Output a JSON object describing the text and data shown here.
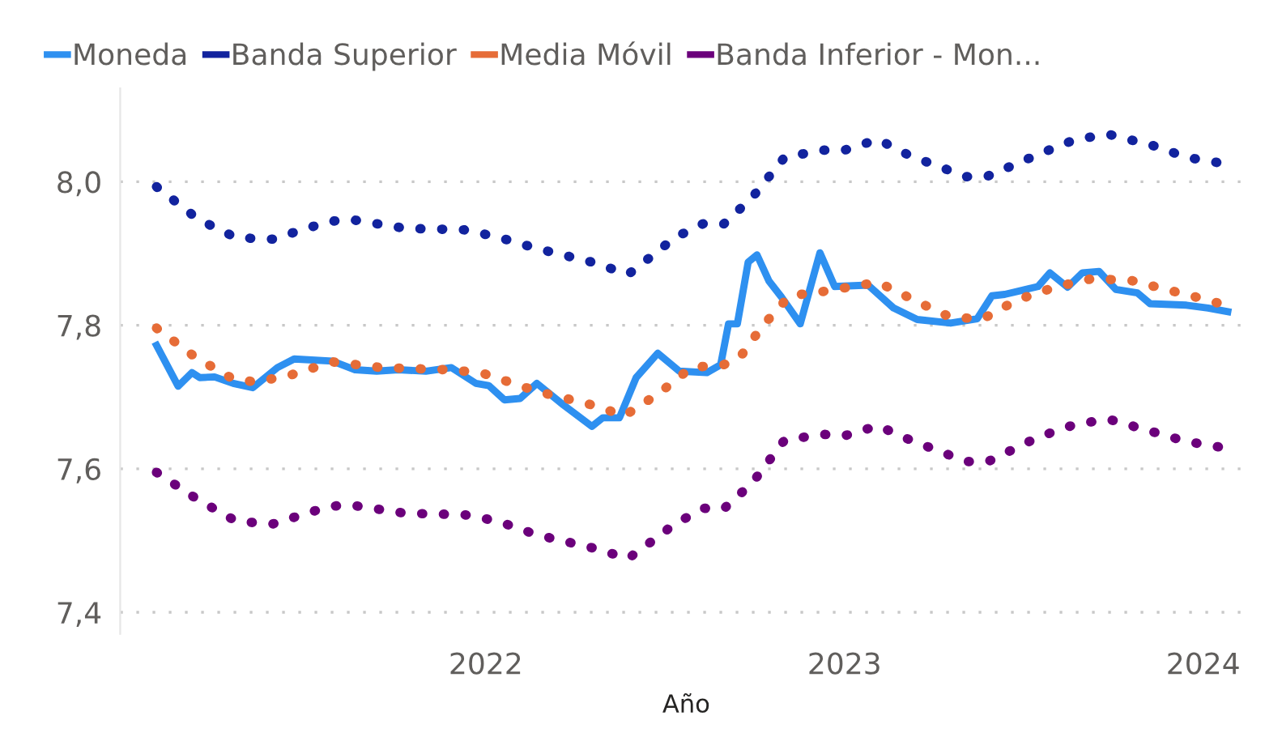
{
  "chart_data": {
    "type": "line",
    "xlabel": "Año",
    "legend": "top left",
    "grid": "y",
    "xlim": [
      "2020-12-25",
      "2024-02-20"
    ],
    "xticks": [
      {
        "value": "2022-01-01",
        "label": "2022"
      },
      {
        "value": "2023-01-01",
        "label": "2023"
      },
      {
        "value": "2024-01-01",
        "label": "2024"
      }
    ],
    "ylim": [
      7.37,
      8.13
    ],
    "yticks": [
      {
        "value": 7.4,
        "label": "7,4"
      },
      {
        "value": 7.6,
        "label": "7,6"
      },
      {
        "value": 7.8,
        "label": "7,8"
      },
      {
        "value": 8.0,
        "label": "8,0"
      }
    ],
    "series": [
      {
        "name": "Moneda",
        "color": "#2e90f0",
        "line_style": "solid",
        "x": [
          "2021-01-31",
          "2021-02-22",
          "2021-03-08",
          "2021-03-16",
          "2021-03-31",
          "2021-04-19",
          "2021-05-09",
          "2021-06-03",
          "2021-06-20",
          "2021-07-29",
          "2021-08-21",
          "2021-09-12",
          "2021-10-04",
          "2021-11-01",
          "2021-11-27",
          "2021-12-22",
          "2022-01-04",
          "2022-01-20",
          "2022-02-05",
          "2022-02-22",
          "2022-03-21",
          "2022-04-19",
          "2022-04-30",
          "2022-05-17",
          "2022-06-03",
          "2022-06-25",
          "2022-07-17",
          "2022-08-14",
          "2022-08-28",
          "2022-09-05",
          "2022-09-14",
          "2022-09-25",
          "2022-10-04",
          "2022-10-16",
          "2022-10-29",
          "2022-11-17",
          "2022-12-07",
          "2022-12-22",
          "2023-01-25",
          "2023-02-20",
          "2023-03-16",
          "2023-04-19",
          "2023-05-16",
          "2023-05-31",
          "2023-06-13",
          "2023-07-17",
          "2023-07-29",
          "2023-08-16",
          "2023-08-31",
          "2023-09-17",
          "2023-10-04",
          "2023-10-26",
          "2023-11-08",
          "2023-12-15",
          "2024-01-06",
          "2024-01-26"
        ],
        "values": [
          7.772,
          7.715,
          7.734,
          7.727,
          7.728,
          7.719,
          7.713,
          7.741,
          7.753,
          7.75,
          7.738,
          7.736,
          7.738,
          7.736,
          7.741,
          7.719,
          7.716,
          7.696,
          7.698,
          7.719,
          7.689,
          7.659,
          7.671,
          7.671,
          7.727,
          7.761,
          7.736,
          7.734,
          7.745,
          7.802,
          7.802,
          7.888,
          7.898,
          7.862,
          7.839,
          7.802,
          7.901,
          7.854,
          7.856,
          7.824,
          7.808,
          7.803,
          7.809,
          7.841,
          7.843,
          7.854,
          7.873,
          7.853,
          7.873,
          7.875,
          7.85,
          7.845,
          7.83,
          7.828,
          7.824,
          7.819
        ]
      },
      {
        "name": "Banda Superior",
        "color": "#12239e",
        "line_style": "dotted",
        "x": [
          "2021-01-31",
          "2021-03-14",
          "2021-04-22",
          "2021-05-29",
          "2021-07-24",
          "2021-08-14",
          "2021-10-11",
          "2021-12-10",
          "2022-01-13",
          "2022-02-22",
          "2022-04-19",
          "2022-05-26",
          "2022-06-25",
          "2022-07-12",
          "2022-08-11",
          "2022-08-31",
          "2022-09-29",
          "2022-11-01",
          "2022-12-10",
          "2023-01-01",
          "2023-02-04",
          "2023-03-09",
          "2023-05-05",
          "2023-05-27",
          "2023-07-17",
          "2023-08-24",
          "2023-09-27",
          "2023-11-12",
          "2023-12-15",
          "2024-01-23"
        ],
        "values": [
          7.993,
          7.948,
          7.922,
          7.92,
          7.944,
          7.948,
          7.935,
          7.933,
          7.923,
          7.907,
          7.888,
          7.871,
          7.903,
          7.922,
          7.942,
          7.941,
          7.978,
          8.034,
          8.044,
          8.044,
          8.059,
          8.036,
          8.007,
          8.008,
          8.038,
          8.059,
          8.066,
          8.05,
          8.034,
          8.025
        ]
      },
      {
        "name": "Media Móvil",
        "color": "#e66c37",
        "line_style": "dotted",
        "x": [
          "2021-01-31",
          "2021-03-11",
          "2021-04-19",
          "2021-05-12",
          "2021-06-15",
          "2021-07-29",
          "2021-09-17",
          "2021-11-23",
          "2021-12-27",
          "2022-02-22",
          "2022-04-19",
          "2022-05-22",
          "2022-06-25",
          "2022-07-29",
          "2022-08-31",
          "2022-09-17",
          "2022-10-09",
          "2022-11-06",
          "2022-12-10",
          "2023-02-04",
          "2023-03-16",
          "2023-04-19",
          "2023-05-22",
          "2023-06-25",
          "2023-08-03",
          "2023-09-10",
          "2023-10-21",
          "2023-11-24",
          "2024-01-06",
          "2024-01-23"
        ],
        "values": [
          7.796,
          7.756,
          7.725,
          7.721,
          7.73,
          7.749,
          7.741,
          7.738,
          7.734,
          7.708,
          7.689,
          7.674,
          7.704,
          7.741,
          7.745,
          7.756,
          7.798,
          7.841,
          7.847,
          7.86,
          7.833,
          7.811,
          7.809,
          7.835,
          7.853,
          7.865,
          7.862,
          7.85,
          7.835,
          7.828
        ]
      },
      {
        "name": "Banda Inferior - Mon...",
        "color": "#6b007b",
        "line_style": "dotted",
        "x": [
          "2021-01-31",
          "2021-03-14",
          "2021-04-22",
          "2021-05-29",
          "2021-07-24",
          "2021-08-14",
          "2021-10-11",
          "2021-12-10",
          "2022-01-13",
          "2022-02-22",
          "2022-04-19",
          "2022-05-26",
          "2022-06-25",
          "2022-07-12",
          "2022-08-11",
          "2022-08-31",
          "2022-09-29",
          "2022-11-01",
          "2022-12-10",
          "2023-01-01",
          "2023-02-04",
          "2023-03-09",
          "2023-05-05",
          "2023-05-27",
          "2023-07-17",
          "2023-08-24",
          "2023-09-27",
          "2023-11-12",
          "2023-12-15",
          "2024-01-23"
        ],
        "values": [
          7.595,
          7.557,
          7.527,
          7.523,
          7.547,
          7.55,
          7.538,
          7.536,
          7.527,
          7.508,
          7.49,
          7.475,
          7.505,
          7.523,
          7.545,
          7.544,
          7.58,
          7.64,
          7.648,
          7.646,
          7.66,
          7.64,
          7.61,
          7.61,
          7.644,
          7.662,
          7.669,
          7.651,
          7.638,
          7.629
        ]
      }
    ]
  }
}
